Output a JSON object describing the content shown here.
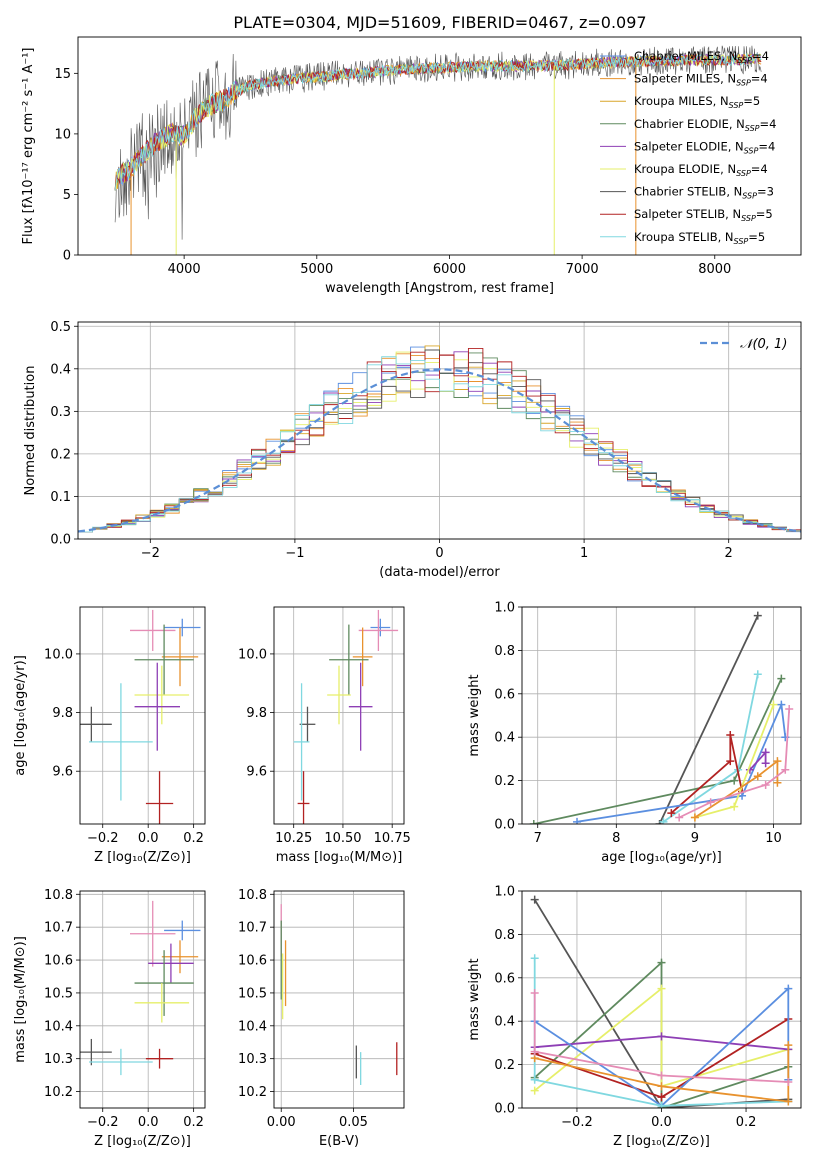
{
  "figure": {
    "title": "PLATE=0304, MJD=51609, FIBERID=0467, z=0.097"
  },
  "colors": {
    "chabrier_miles": "#5b8fe0",
    "salpeter_miles": "#e8922e",
    "kroupa_miles": "#d9a62a",
    "chabrier_elodie": "#5f8a5f",
    "salpeter_elodie": "#8e3fb5",
    "kroupa_elodie": "#e6ef6a",
    "chabrier_stelib": "#555555",
    "salpeter_stelib": "#b22222",
    "kroupa_stelib": "#80d8e0",
    "pink": "#e58cb5",
    "normal": "#5b8fd6"
  },
  "chart_data": [
    {
      "type": "line",
      "title": "PLATE=0304, MJD=51609, FIBERID=0467, z=0.097",
      "xlabel": "wavelength [Angstrom, rest frame]",
      "ylabel": "Flux [fλ10⁻¹⁷ erg cm⁻² s⁻¹ A⁻¹]",
      "xlim": [
        3200,
        8650
      ],
      "ylim": [
        0,
        18
      ],
      "xticks": [
        "4000",
        "5000",
        "6000",
        "7000",
        "8000"
      ],
      "yticks": [
        "0",
        "5",
        "10",
        "15"
      ],
      "legend_position": "right",
      "legend": [
        {
          "label": "Chabrier MILES, N",
          "sub": "SSP",
          "value": "=4",
          "color": "#5b8fe0"
        },
        {
          "label": "Salpeter MILES, N",
          "sub": "SSP",
          "value": "=4",
          "color": "#e8922e"
        },
        {
          "label": "Kroupa MILES, N",
          "sub": "SSP",
          "value": "=5",
          "color": "#d9a62a"
        },
        {
          "label": "Chabrier ELODIE, N",
          "sub": "SSP",
          "value": "=4",
          "color": "#5f8a5f"
        },
        {
          "label": "Salpeter ELODIE, N",
          "sub": "SSP",
          "value": "=4",
          "color": "#8e3fb5"
        },
        {
          "label": "Kroupa ELODIE, N",
          "sub": "SSP",
          "value": "=4",
          "color": "#e6ef6a"
        },
        {
          "label": "Chabrier STELIB, N",
          "sub": "SSP",
          "value": "=3",
          "color": "#555555"
        },
        {
          "label": "Salpeter STELIB, N",
          "sub": "SSP",
          "value": "=5",
          "color": "#b22222"
        },
        {
          "label": "Kroupa STELIB, N",
          "sub": "SSP",
          "value": "=5",
          "color": "#80d8e0"
        }
      ],
      "continuum": [
        [
          3480,
          6.2
        ],
        [
          3600,
          7.2
        ],
        [
          3700,
          8.4
        ],
        [
          3800,
          9.4
        ],
        [
          3900,
          10.0
        ],
        [
          4000,
          9.8
        ],
        [
          4100,
          11.6
        ],
        [
          4200,
          12.4
        ],
        [
          4300,
          12.8
        ],
        [
          4400,
          13.6
        ],
        [
          4500,
          14.0
        ],
        [
          4700,
          14.4
        ],
        [
          4900,
          14.6
        ],
        [
          5100,
          14.8
        ],
        [
          5300,
          15.0
        ],
        [
          5500,
          15.2
        ],
        [
          5800,
          15.4
        ],
        [
          6000,
          15.5
        ],
        [
          6300,
          15.6
        ],
        [
          6600,
          15.6
        ],
        [
          6900,
          15.7
        ],
        [
          7200,
          15.9
        ],
        [
          7500,
          16.0
        ],
        [
          7800,
          16.1
        ],
        [
          8100,
          16.1
        ],
        [
          8350,
          16.2
        ]
      ]
    },
    {
      "type": "line",
      "xlabel": "(data-model)/error",
      "ylabel": "Normed distribution",
      "xlim": [
        -2.5,
        2.5
      ],
      "ylim": [
        0,
        0.51
      ],
      "xticks": [
        "−2",
        "−1",
        "0",
        "1",
        "2"
      ],
      "yticks": [
        "0.0",
        "0.1",
        "0.2",
        "0.3",
        "0.4",
        "0.5"
      ],
      "legend": "𝒩(0, 1)",
      "legend_position": "top-right",
      "bin_width": 0.1
    },
    {
      "type": "scatter",
      "xlabel": "Z [log₁₀(Z/Z⊙)]",
      "ylabel": "age  [log₁₀(age/yr)]",
      "xlim": [
        -0.3,
        0.25
      ],
      "ylim": [
        9.42,
        10.16
      ],
      "xticks": [
        "−0.2",
        "0.0",
        "0.2"
      ],
      "yticks": [
        "9.6",
        "9.8",
        "10.0"
      ],
      "points": [
        {
          "x": 0.15,
          "y": 10.09,
          "xerr": 0.08,
          "yerr": 0.03,
          "color": "#5b8fe0"
        },
        {
          "x": 0.02,
          "y": 10.08,
          "xerr": 0.1,
          "yerr": 0.07,
          "color": "#e58cb5"
        },
        {
          "x": 0.14,
          "y": 9.99,
          "xerr": 0.08,
          "yerr": 0.1,
          "color": "#e8922e"
        },
        {
          "x": 0.07,
          "y": 9.98,
          "xerr": 0.13,
          "yerr": 0.12,
          "color": "#5f8a5f"
        },
        {
          "x": 0.06,
          "y": 9.86,
          "xerr": 0.12,
          "yerr": 0.1,
          "color": "#e6ef6a"
        },
        {
          "x": 0.04,
          "y": 9.82,
          "xerr": 0.1,
          "yerr": 0.15,
          "color": "#8e3fb5"
        },
        {
          "x": -0.25,
          "y": 9.76,
          "xerr": 0.09,
          "yerr": 0.06,
          "color": "#555555"
        },
        {
          "x": -0.12,
          "y": 9.7,
          "xerr": 0.14,
          "yerr": 0.2,
          "color": "#80d8e0"
        },
        {
          "x": 0.05,
          "y": 9.49,
          "xerr": 0.06,
          "yerr": 0.11,
          "color": "#b22222"
        }
      ]
    },
    {
      "type": "scatter",
      "xlabel": "mass [log₁₀(M/M⊙)]",
      "ylabel": "",
      "xlim": [
        10.15,
        10.81
      ],
      "ylim": [
        9.42,
        10.16
      ],
      "xticks": [
        "10.25",
        "10.50",
        "10.75"
      ],
      "yticks": [
        "9.6",
        "9.8",
        "10.0"
      ],
      "points": [
        {
          "x": 10.69,
          "y": 10.09,
          "xerr": 0.05,
          "yerr": 0.03,
          "color": "#5b8fe0"
        },
        {
          "x": 10.68,
          "y": 10.08,
          "xerr": 0.1,
          "yerr": 0.07,
          "color": "#e58cb5"
        },
        {
          "x": 10.6,
          "y": 9.99,
          "xerr": 0.05,
          "yerr": 0.1,
          "color": "#e8922e"
        },
        {
          "x": 10.53,
          "y": 9.98,
          "xerr": 0.1,
          "yerr": 0.12,
          "color": "#5f8a5f"
        },
        {
          "x": 10.48,
          "y": 9.86,
          "xerr": 0.06,
          "yerr": 0.1,
          "color": "#e6ef6a"
        },
        {
          "x": 10.59,
          "y": 9.82,
          "xerr": 0.06,
          "yerr": 0.15,
          "color": "#8e3fb5"
        },
        {
          "x": 10.32,
          "y": 9.76,
          "xerr": 0.04,
          "yerr": 0.06,
          "color": "#555555"
        },
        {
          "x": 10.29,
          "y": 9.7,
          "xerr": 0.04,
          "yerr": 0.2,
          "color": "#80d8e0"
        },
        {
          "x": 10.3,
          "y": 9.49,
          "xerr": 0.03,
          "yerr": 0.11,
          "color": "#b22222"
        }
      ]
    },
    {
      "type": "line",
      "xlabel": "age  [log₁₀(age/yr)]",
      "ylabel": "mass weight",
      "xlim": [
        6.8,
        10.35
      ],
      "ylim": [
        0,
        1.0
      ],
      "xticks": [
        "7",
        "8",
        "9",
        "10"
      ],
      "yticks": [
        "0.0",
        "0.2",
        "0.4",
        "0.6",
        "0.8",
        "1.0"
      ],
      "series": [
        {
          "color": "#555555",
          "points": [
            [
              8.55,
              0.0
            ],
            [
              9.8,
              0.96
            ]
          ]
        },
        {
          "color": "#5f8a5f",
          "points": [
            [
              6.95,
              0.0
            ],
            [
              9.5,
              0.2
            ],
            [
              10.1,
              0.67
            ]
          ]
        },
        {
          "color": "#80d8e0",
          "points": [
            [
              8.6,
              0.01
            ],
            [
              9.55,
              0.25
            ],
            [
              9.8,
              0.69
            ]
          ]
        },
        {
          "color": "#b22222",
          "points": [
            [
              8.7,
              0.05
            ],
            [
              9.45,
              0.29
            ],
            [
              9.45,
              0.41
            ],
            [
              9.6,
              0.15
            ]
          ]
        },
        {
          "color": "#5b8fe0",
          "points": [
            [
              7.5,
              0.01
            ],
            [
              9.6,
              0.13
            ],
            [
              10.1,
              0.55
            ],
            [
              10.15,
              0.4
            ]
          ]
        },
        {
          "color": "#8e3fb5",
          "points": [
            [
              9.7,
              0.25
            ],
            [
              9.9,
              0.33
            ],
            [
              9.9,
              0.28
            ]
          ]
        },
        {
          "color": "#e6ef6a",
          "points": [
            [
              9.0,
              0.03
            ],
            [
              9.5,
              0.08
            ],
            [
              10.0,
              0.55
            ]
          ]
        },
        {
          "color": "#e8922e",
          "points": [
            [
              9.0,
              0.03
            ],
            [
              9.8,
              0.22
            ],
            [
              10.05,
              0.29
            ],
            [
              10.05,
              0.19
            ]
          ]
        },
        {
          "color": "#e58cb5",
          "points": [
            [
              8.8,
              0.03
            ],
            [
              9.2,
              0.1
            ],
            [
              9.9,
              0.18
            ],
            [
              10.15,
              0.25
            ],
            [
              10.2,
              0.53
            ]
          ]
        }
      ]
    },
    {
      "type": "scatter",
      "xlabel": "Z [log₁₀(Z/Z⊙)]",
      "ylabel": "mass [log₁₀(M/M⊙)]",
      "xlim": [
        -0.3,
        0.25
      ],
      "ylim": [
        10.15,
        10.81
      ],
      "xticks": [
        "−0.2",
        "0.0",
        "0.2"
      ],
      "yticks": [
        "10.2",
        "10.3",
        "10.4",
        "10.5",
        "10.6",
        "10.7",
        "10.8"
      ],
      "points": [
        {
          "x": 0.15,
          "y": 10.69,
          "xerr": 0.08,
          "yerr": 0.03,
          "color": "#5b8fe0"
        },
        {
          "x": 0.02,
          "y": 10.68,
          "xerr": 0.1,
          "yerr": 0.1,
          "color": "#e58cb5"
        },
        {
          "x": 0.14,
          "y": 10.61,
          "xerr": 0.08,
          "yerr": 0.05,
          "color": "#e8922e"
        },
        {
          "x": 0.1,
          "y": 10.59,
          "xerr": 0.1,
          "yerr": 0.06,
          "color": "#8e3fb5"
        },
        {
          "x": 0.07,
          "y": 10.53,
          "xerr": 0.13,
          "yerr": 0.1,
          "color": "#5f8a5f"
        },
        {
          "x": 0.06,
          "y": 10.47,
          "xerr": 0.12,
          "yerr": 0.06,
          "color": "#e6ef6a"
        },
        {
          "x": -0.25,
          "y": 10.32,
          "xerr": 0.09,
          "yerr": 0.04,
          "color": "#555555"
        },
        {
          "x": 0.05,
          "y": 10.3,
          "xerr": 0.06,
          "yerr": 0.03,
          "color": "#b22222"
        },
        {
          "x": -0.12,
          "y": 10.29,
          "xerr": 0.14,
          "yerr": 0.04,
          "color": "#80d8e0"
        }
      ]
    },
    {
      "type": "scatter",
      "xlabel": "E(B-V)",
      "ylabel": "",
      "xlim": [
        -0.005,
        0.085
      ],
      "ylim": [
        10.15,
        10.81
      ],
      "xticks": [
        "0.00",
        "0.05"
      ],
      "yticks": [
        "10.2",
        "10.3",
        "10.4",
        "10.5",
        "10.6",
        "10.7",
        "10.8"
      ],
      "points": [
        {
          "x": 0.0,
          "y": 10.69,
          "xerr": 0,
          "yerr": 0.08,
          "color": "#e58cb5"
        },
        {
          "x": 0.0,
          "y": 10.6,
          "xerr": 0,
          "yerr": 0.12,
          "color": "#5f8a5f"
        },
        {
          "x": 0.001,
          "y": 10.52,
          "xerr": 0,
          "yerr": 0.1,
          "color": "#e6ef6a"
        },
        {
          "x": 0.003,
          "y": 10.56,
          "xerr": 0,
          "yerr": 0.1,
          "color": "#e8922e"
        },
        {
          "x": 0.052,
          "y": 10.29,
          "xerr": 0,
          "yerr": 0.05,
          "color": "#555555"
        },
        {
          "x": 0.055,
          "y": 10.27,
          "xerr": 0,
          "yerr": 0.05,
          "color": "#80d8e0"
        },
        {
          "x": 0.08,
          "y": 10.3,
          "xerr": 0,
          "yerr": 0.05,
          "color": "#b22222"
        }
      ]
    },
    {
      "type": "line",
      "xlabel": "Z [log₁₀(Z/Z⊙)]",
      "ylabel": "mass weight",
      "xlim": [
        -0.33,
        0.33
      ],
      "ylim": [
        0,
        1.0
      ],
      "xticks": [
        "−0.2",
        "0.0",
        "0.2"
      ],
      "yticks": [
        "0.0",
        "0.2",
        "0.4",
        "0.6",
        "0.8",
        "1.0"
      ],
      "series": [
        {
          "color": "#555555",
          "points": [
            [
              -0.3,
              0.96
            ],
            [
              0.0,
              0.0
            ],
            [
              0.3,
              0.04
            ]
          ]
        },
        {
          "color": "#5f8a5f",
          "points": [
            [
              -0.3,
              0.14
            ],
            [
              0.0,
              0.67
            ],
            [
              0.0,
              0.0
            ],
            [
              0.3,
              0.19
            ]
          ]
        },
        {
          "color": "#e6ef6a",
          "points": [
            [
              -0.3,
              0.08
            ],
            [
              0.0,
              0.55
            ],
            [
              0.0,
              0.1
            ],
            [
              0.3,
              0.27
            ]
          ]
        },
        {
          "color": "#8e3fb5",
          "points": [
            [
              -0.3,
              0.28
            ],
            [
              0.0,
              0.33
            ],
            [
              0.3,
              0.27
            ]
          ]
        },
        {
          "color": "#b22222",
          "points": [
            [
              -0.3,
              0.25
            ],
            [
              0.0,
              0.05
            ],
            [
              0.3,
              0.41
            ]
          ]
        },
        {
          "color": "#5b8fe0",
          "points": [
            [
              -0.3,
              0.4
            ],
            [
              0.0,
              0.01
            ],
            [
              0.3,
              0.55
            ],
            [
              0.3,
              0.13
            ]
          ]
        },
        {
          "color": "#80d8e0",
          "points": [
            [
              -0.3,
              0.69
            ],
            [
              -0.3,
              0.13
            ],
            [
              0.0,
              0.01
            ],
            [
              0.3,
              0.03
            ]
          ]
        },
        {
          "color": "#e8922e",
          "points": [
            [
              -0.3,
              0.23
            ],
            [
              0.0,
              0.1
            ],
            [
              0.3,
              0.03
            ],
            [
              0.3,
              0.29
            ]
          ]
        },
        {
          "color": "#e58cb5",
          "points": [
            [
              -0.3,
              0.53
            ],
            [
              -0.3,
              0.26
            ],
            [
              0.0,
              0.15
            ],
            [
              0.3,
              0.12
            ]
          ]
        }
      ]
    }
  ]
}
